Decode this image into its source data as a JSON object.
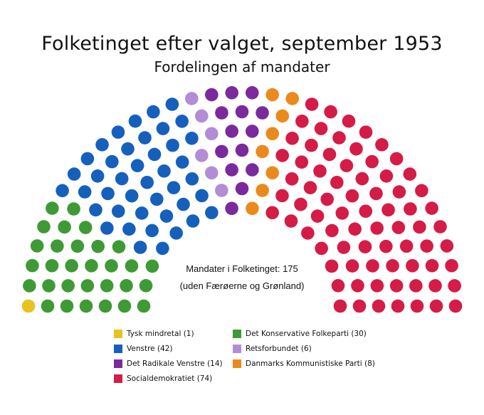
{
  "chart_data": {
    "type": "parliament",
    "title": "Folketinget efter valget, september 1953",
    "subtitle": "Fordelingen af mandater",
    "annotations": [
      "Mandater i Folketinget: 175",
      "(uden Færøerne og Grønland)"
    ],
    "total_seats": 175,
    "rows": 7,
    "parties": [
      {
        "name": "Tysk mindretal",
        "seats": 1,
        "color": "#E8C21E",
        "legend": "Tysk mindretal (1)"
      },
      {
        "name": "Det Konservative Folkeparti",
        "seats": 30,
        "color": "#3E9A35",
        "legend": "Det Konservative Folkeparti (30)"
      },
      {
        "name": "Venstre",
        "seats": 42,
        "color": "#1560BD",
        "legend": "Venstre (42)"
      },
      {
        "name": "Retsforbundet",
        "seats": 6,
        "color": "#B38CD6",
        "legend": "Retsforbundet (6)"
      },
      {
        "name": "Det Radikale Venstre",
        "seats": 14,
        "color": "#7A2A9C",
        "legend": "Det Radikale Venstre (14)"
      },
      {
        "name": "Danmarks Kommunistiske Parti",
        "seats": 8,
        "color": "#EB8A1C",
        "legend": "Danmarks Kommunistiske Parti (8)"
      },
      {
        "name": "Socialdemokratiet",
        "seats": 74,
        "color": "#D41C46",
        "legend": "Socialdemokratiet (74)"
      }
    ],
    "legend_order": [
      "Tysk mindretal",
      "Det Konservative Folkeparti",
      "Venstre",
      "Retsforbundet",
      "Det Radikale Venstre",
      "Danmarks Kommunistiske Parti",
      "Socialdemokratiet"
    ]
  }
}
